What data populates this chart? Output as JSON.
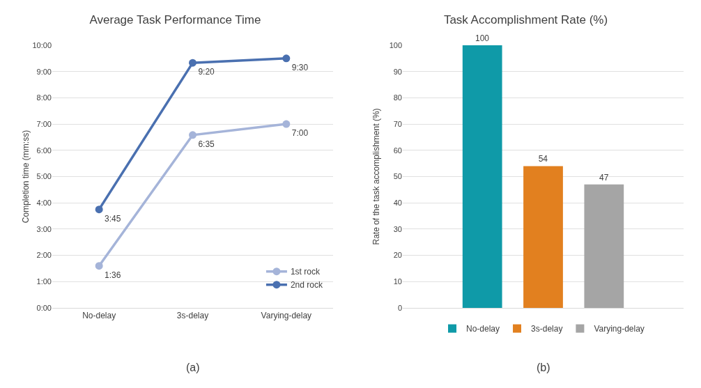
{
  "chart_data": [
    {
      "type": "line",
      "title": "Average Task Performance Time",
      "ylabel": "Completion time (mm:ss)",
      "categories": [
        "No-delay",
        "3s-delay",
        "Varying-delay"
      ],
      "series": [
        {
          "name": "1st rock",
          "color": "#a5b4d9",
          "values": [
            1.6,
            6.583,
            7
          ],
          "value_labels": [
            "1:36",
            "6:35",
            "7:00"
          ]
        },
        {
          "name": "2nd rock",
          "color": "#4a70b0",
          "values": [
            3.75,
            9.333,
            9.5
          ],
          "value_labels": [
            "3:45",
            "9:20",
            "9:30"
          ]
        }
      ],
      "ylim": [
        0,
        10
      ],
      "yticks": [
        {
          "value": 0,
          "label": "0:00"
        },
        {
          "value": 1,
          "label": "1:00"
        },
        {
          "value": 2,
          "label": "2:00"
        },
        {
          "value": 3,
          "label": "3:00"
        },
        {
          "value": 4,
          "label": "4:00"
        },
        {
          "value": 5,
          "label": "5:00"
        },
        {
          "value": 6,
          "label": "6:00"
        },
        {
          "value": 7,
          "label": "7:00"
        },
        {
          "value": 8,
          "label": "8:00"
        },
        {
          "value": 9,
          "label": "9:00"
        },
        {
          "value": 10,
          "label": "10:00"
        }
      ],
      "grid": "y",
      "legend": "bottom right",
      "marker": "circle",
      "line_style": "solid",
      "annotations": [
        "(a)"
      ]
    },
    {
      "type": "bar",
      "title": "Task Accomplishment Rate (%)",
      "ylabel": "Rate of the task accomplishment (%)",
      "categories": [
        null
      ],
      "series": [
        {
          "name": "No-delay",
          "color": "#0f9aa8",
          "values": [
            100
          ]
        },
        {
          "name": "3s-delay",
          "color": "#e2801f",
          "values": [
            54
          ]
        },
        {
          "name": "Varying-delay",
          "color": "#a5a5a5",
          "values": [
            47
          ]
        }
      ],
      "ylim": [
        0,
        100
      ],
      "yticks": [
        0,
        10,
        20,
        30,
        40,
        50,
        60,
        70,
        80,
        90,
        100
      ],
      "grid": "y",
      "legend": "bottom",
      "data_labels": true,
      "tick_labels": "y",
      "annotations": [
        "(b)"
      ]
    }
  ]
}
